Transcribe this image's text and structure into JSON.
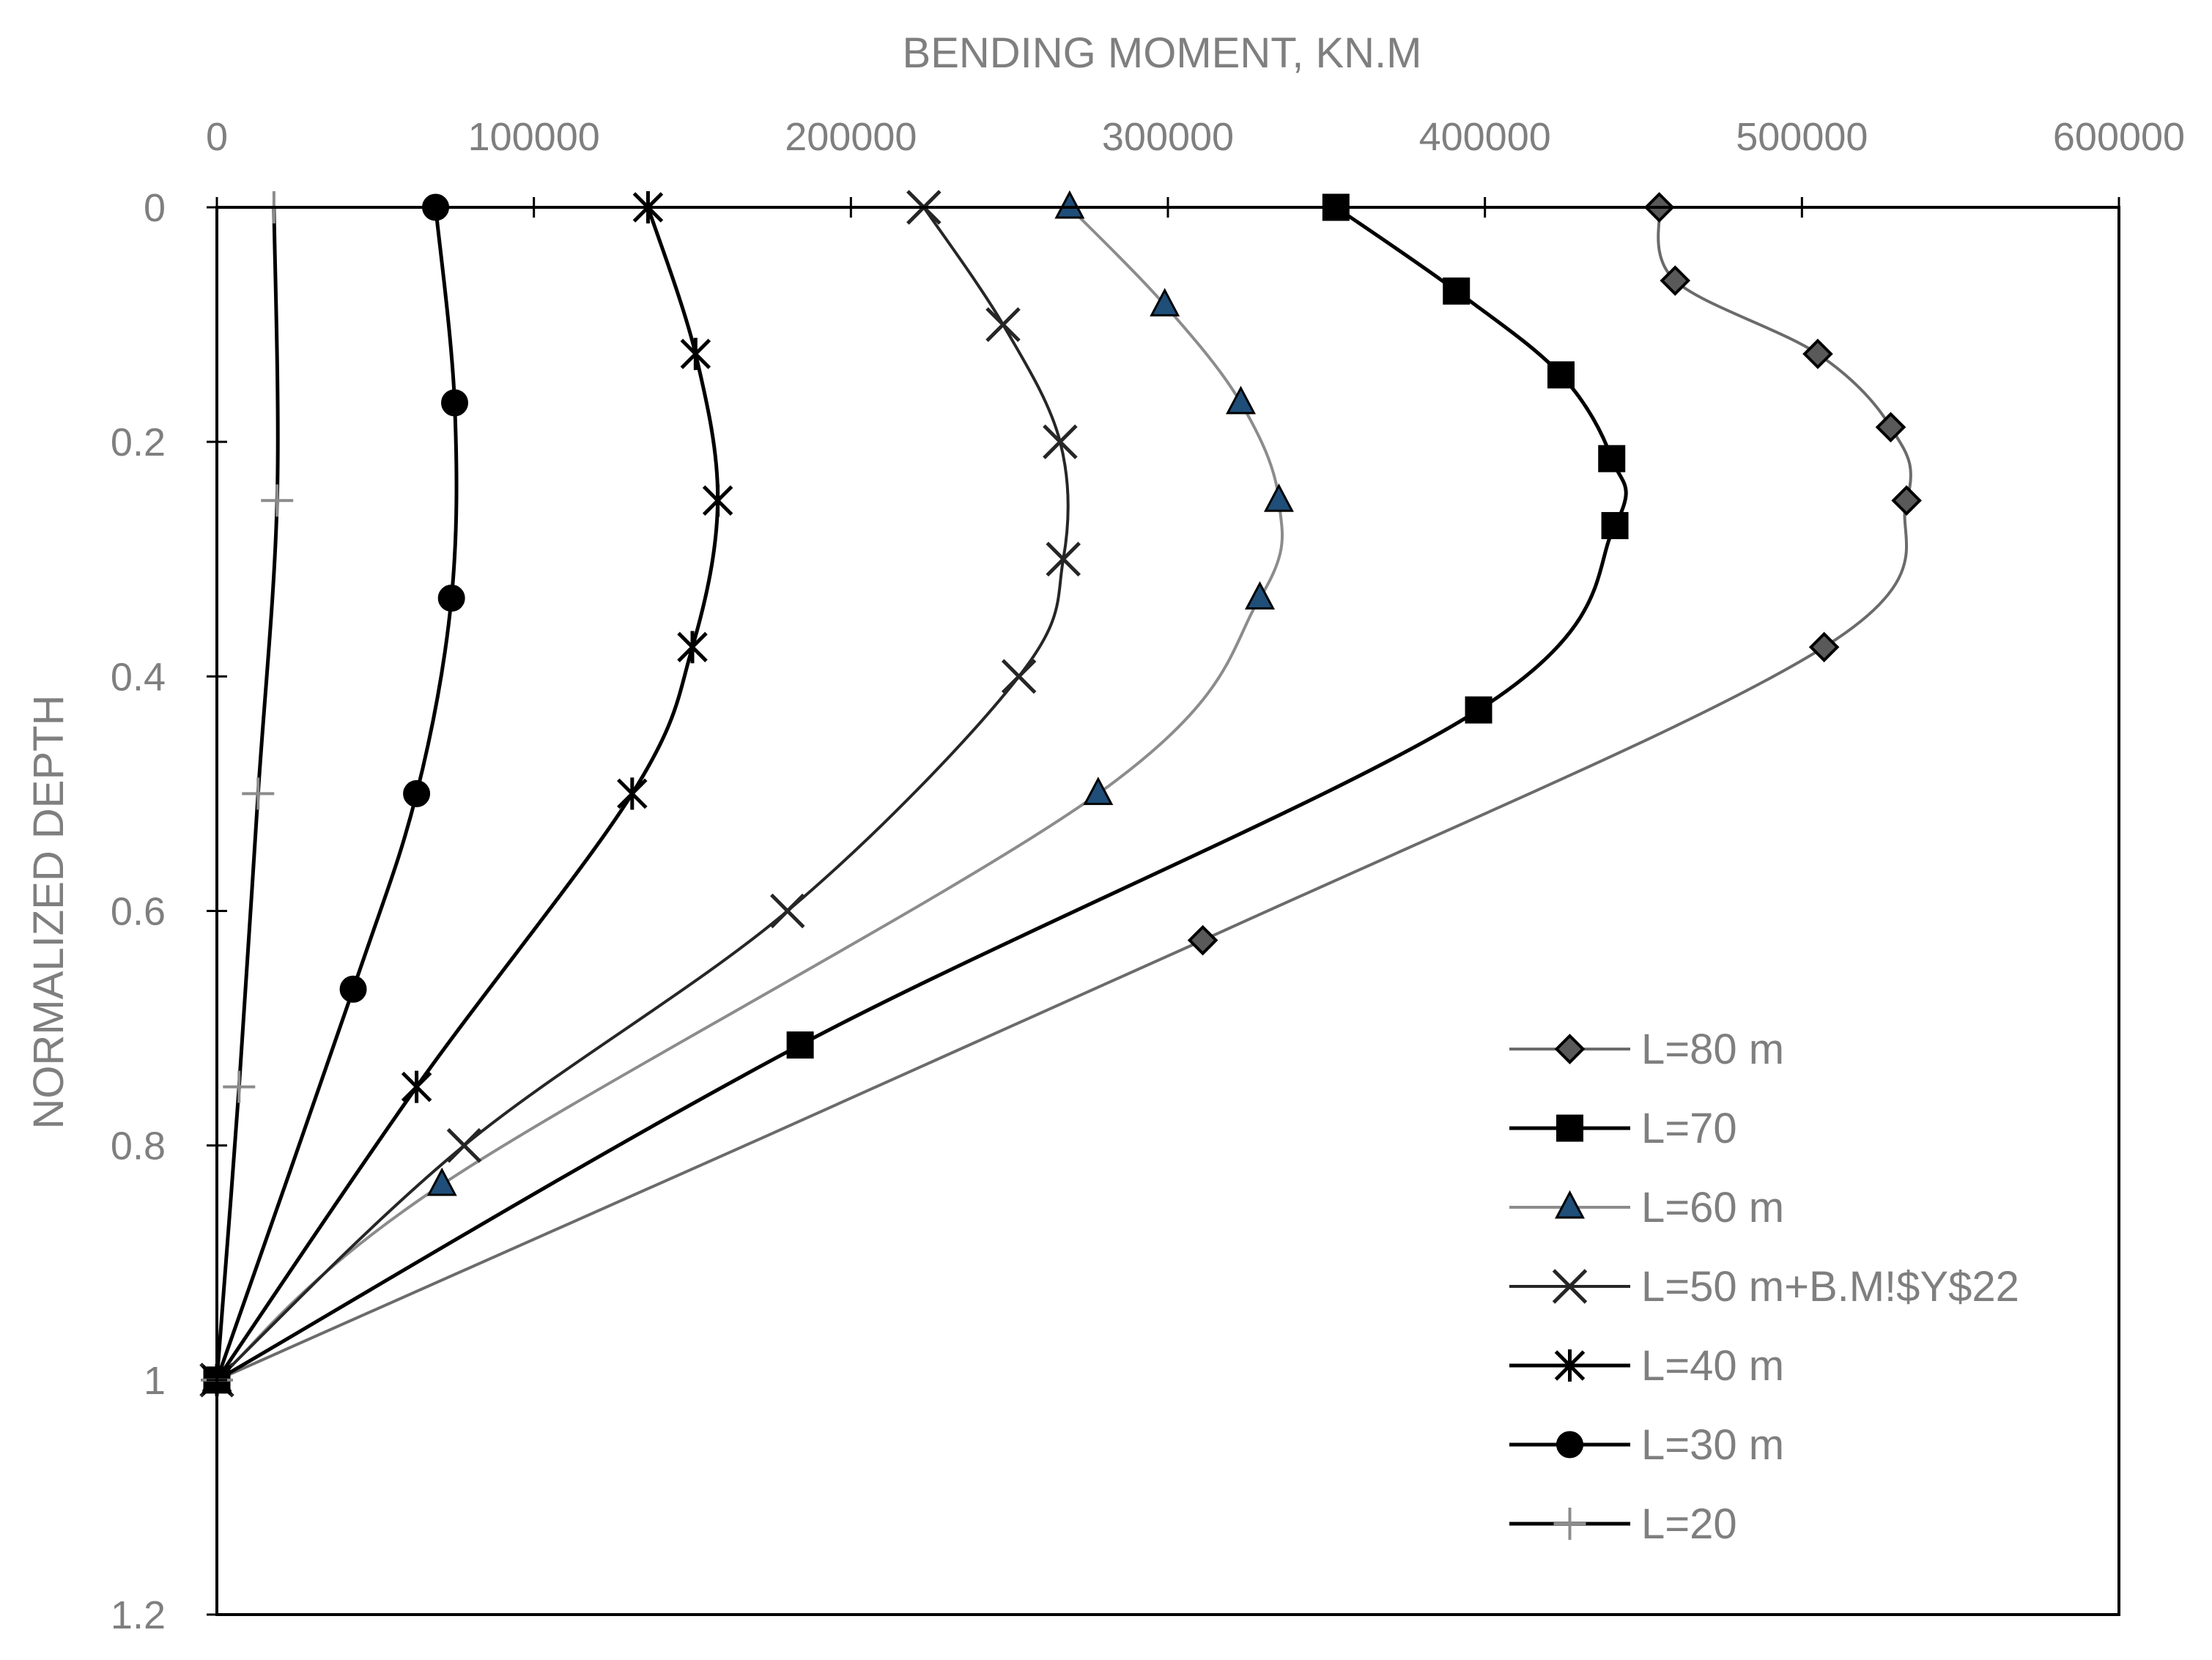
{
  "chart_data": {
    "type": "scatter",
    "title": "",
    "xlabel": "BENDING MOMENT, KN.M",
    "ylabel": "NORMALIZED DEPTH",
    "xlim": [
      0,
      600000
    ],
    "ylim": [
      0,
      1.2
    ],
    "y_inverted": true,
    "x_axis_position": "top",
    "grid": false,
    "legend_position": "bottom-right",
    "x_ticks": [
      0,
      100000,
      200000,
      300000,
      400000,
      500000,
      600000
    ],
    "x_tick_labels": [
      "0",
      "100000",
      "200000",
      "300000",
      "400000",
      "500000",
      "600000"
    ],
    "y_ticks": [
      0,
      0.2,
      0.4,
      0.6,
      0.8,
      1,
      1.2
    ],
    "y_tick_labels": [
      "0",
      "0.2",
      "0.4",
      "0.6",
      "0.8",
      "1",
      "1.2"
    ],
    "series": [
      {
        "name": "L=80 m",
        "marker": "diamond",
        "line_color": "#6b6b6b",
        "marker_fill": "#595959",
        "marker_stroke": "#000000",
        "points": [
          [
            455000,
            0
          ],
          [
            460000,
            0.0625
          ],
          [
            505000,
            0.125
          ],
          [
            528000,
            0.1875
          ],
          [
            533000,
            0.25
          ],
          [
            507000,
            0.375
          ],
          [
            311000,
            0.625
          ],
          [
            0,
            1
          ]
        ]
      },
      {
        "name": "L=70",
        "marker": "square",
        "line_color": "#000000",
        "marker_fill": "#000000",
        "marker_stroke": "#000000",
        "points": [
          [
            353000,
            0
          ],
          [
            391000,
            0.0714
          ],
          [
            424000,
            0.1429
          ],
          [
            440000,
            0.2143
          ],
          [
            441000,
            0.2714
          ],
          [
            398000,
            0.4286
          ],
          [
            184000,
            0.7143
          ],
          [
            0,
            1
          ]
        ]
      },
      {
        "name": "L=60 m",
        "marker": "triangle",
        "line_color": "#8c8c8c",
        "marker_fill": "#1f4e79",
        "marker_stroke": "#000000",
        "points": [
          [
            269000,
            0
          ],
          [
            299000,
            0.0833
          ],
          [
            323000,
            0.1667
          ],
          [
            335000,
            0.25
          ],
          [
            329000,
            0.3333
          ],
          [
            278000,
            0.5
          ],
          [
            71000,
            0.8333
          ],
          [
            0,
            1
          ]
        ]
      },
      {
        "name": "L=50 m+B.M!$Y$22",
        "marker": "x",
        "line_color": "#262626",
        "marker_fill": "none",
        "marker_stroke": "#262626",
        "points": [
          [
            223000,
            0
          ],
          [
            248000,
            0.1
          ],
          [
            266000,
            0.2
          ],
          [
            267000,
            0.3
          ],
          [
            253000,
            0.4
          ],
          [
            180000,
            0.6
          ],
          [
            78000,
            0.8
          ],
          [
            0,
            1
          ]
        ]
      },
      {
        "name": "L=40 m",
        "marker": "star",
        "line_color": "#000000",
        "marker_fill": "none",
        "marker_stroke": "#000000",
        "points": [
          [
            136000,
            0
          ],
          [
            151000,
            0.125
          ],
          [
            158000,
            0.25
          ],
          [
            150000,
            0.375
          ],
          [
            131000,
            0.5
          ],
          [
            63000,
            0.75
          ],
          [
            0,
            1
          ]
        ]
      },
      {
        "name": "L=30 m",
        "marker": "circle",
        "line_color": "#000000",
        "marker_fill": "#000000",
        "marker_stroke": "#000000",
        "points": [
          [
            69000,
            0
          ],
          [
            75000,
            0.1667
          ],
          [
            74000,
            0.3333
          ],
          [
            63000,
            0.5
          ],
          [
            43000,
            0.6667
          ],
          [
            0,
            1
          ]
        ]
      },
      {
        "name": "L=20",
        "marker": "plus",
        "line_color": "#000000",
        "marker_fill": "none",
        "marker_stroke": "#8c8c8c",
        "points": [
          [
            18000,
            0
          ],
          [
            19000,
            0.25
          ],
          [
            13000,
            0.5
          ],
          [
            7000,
            0.75
          ],
          [
            0,
            1
          ]
        ]
      }
    ]
  }
}
